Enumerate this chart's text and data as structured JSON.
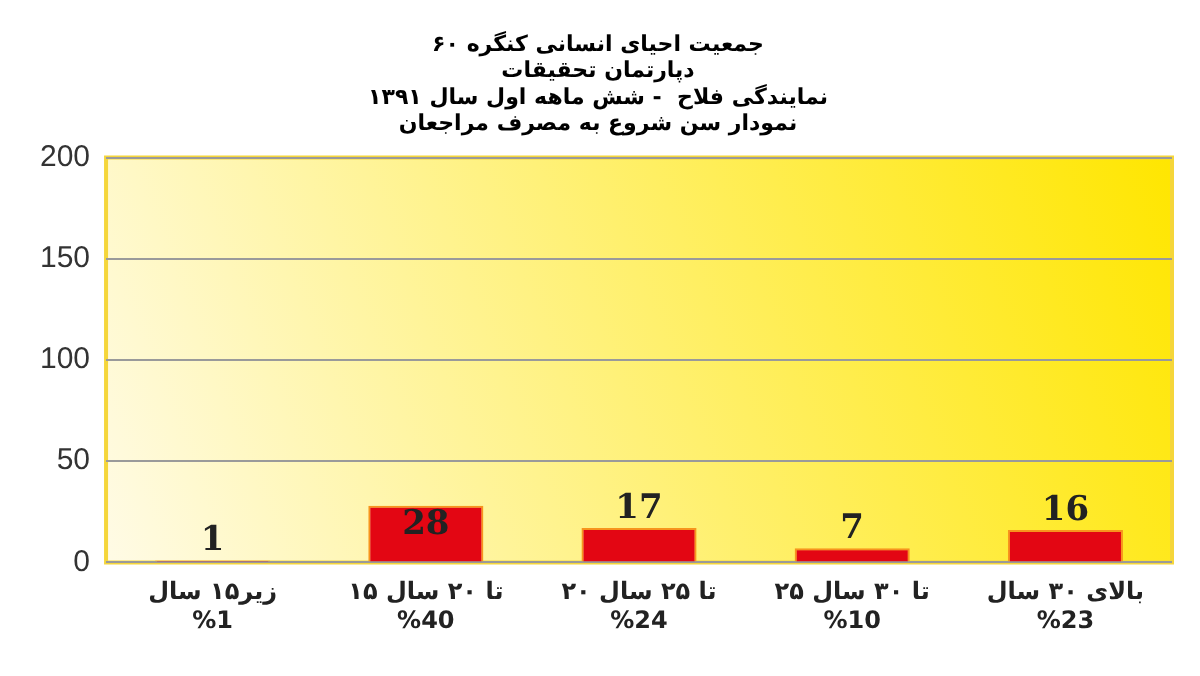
{
  "chart_data": {
    "type": "bar",
    "title": "جمعیت احیای انسانی کنگره ۶۰",
    "subtitle": "دپارتمان تحقیقات\nنمایندگی فلاح  - شش ماهه اول سال ۱۳۹۱\nنمودار سن شروع به مصرف مراجعان",
    "categories": [
      "زیر۱۵ سال\n%1",
      "۱۵ تا ۲۰ سال\n%40",
      "۲۰ تا ۲۵ سال\n%24",
      "۲۵ تا ۳۰ سال\n%10",
      "بالای ۳۰ سال\n%23"
    ],
    "values": [
      1,
      28,
      17,
      7,
      16
    ],
    "color": "#e30613",
    "ylim": [
      0,
      200
    ],
    "yticks": [
      0,
      50,
      100,
      150,
      200
    ],
    "grid": "y",
    "data_labels": true,
    "legend": false
  }
}
